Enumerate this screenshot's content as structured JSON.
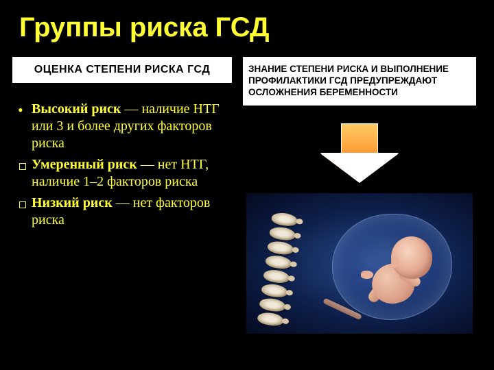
{
  "title": "Группы риска ГСД",
  "left": {
    "header": "ОЦЕНКА СТЕПЕНИ РИСКА ГСД",
    "bullets": [
      {
        "term": "Высокий риск",
        "rest": " — наличие НТГ или 3 и более других факторов риска"
      },
      {
        "term": "Умеренный риск",
        "rest": " — нет НТГ, наличие 1–2 факторов риска"
      },
      {
        "term": "Низкий риск",
        "rest": " — нет факторов риска"
      }
    ]
  },
  "right": {
    "header": "ЗНАНИЕ СТЕПЕНИ РИСКА И ВЫПОЛНЕНИЕ ПРОФИЛАКТИКИ ГСД ПРЕДУПРЕЖДАЮТ ОСЛОЖНЕНИЯ БЕРЕМЕННОСТИ"
  },
  "colors": {
    "background": "#000000",
    "title": "#ffff33",
    "bullet_text": "#ffff33",
    "box_bg": "#ffffff",
    "box_text": "#000000",
    "arrow_top": "#ffcc66",
    "arrow_bottom": "#ff9933"
  },
  "image": {
    "description": "Medical illustration of a fetus in the womb with spine cross-section",
    "bg_gradient": [
      "#2a4a8a",
      "#0d1f4a",
      "#050a1f"
    ]
  }
}
